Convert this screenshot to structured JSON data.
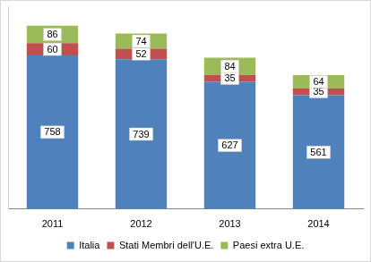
{
  "chart_data": {
    "type": "bar",
    "stacked": true,
    "orientation": "vertical",
    "categories": [
      "2011",
      "2012",
      "2013",
      "2014"
    ],
    "series": [
      {
        "name": "Italia",
        "color": "#4f81bd",
        "values": [
          758,
          739,
          627,
          561
        ]
      },
      {
        "name": "Stati Membri dell'U.E.",
        "color": "#c0504d",
        "values": [
          60,
          52,
          35,
          35
        ]
      },
      {
        "name": "Paesi extra U.E.",
        "color": "#9bbb59",
        "values": [
          86,
          74,
          84,
          64
        ]
      }
    ],
    "ylim": [
      0,
      1000
    ],
    "yticks": [
      0,
      200,
      400,
      600,
      800,
      1000
    ],
    "grid": false,
    "legend": "bottom",
    "data_labels": true,
    "tick_labels": "x"
  }
}
